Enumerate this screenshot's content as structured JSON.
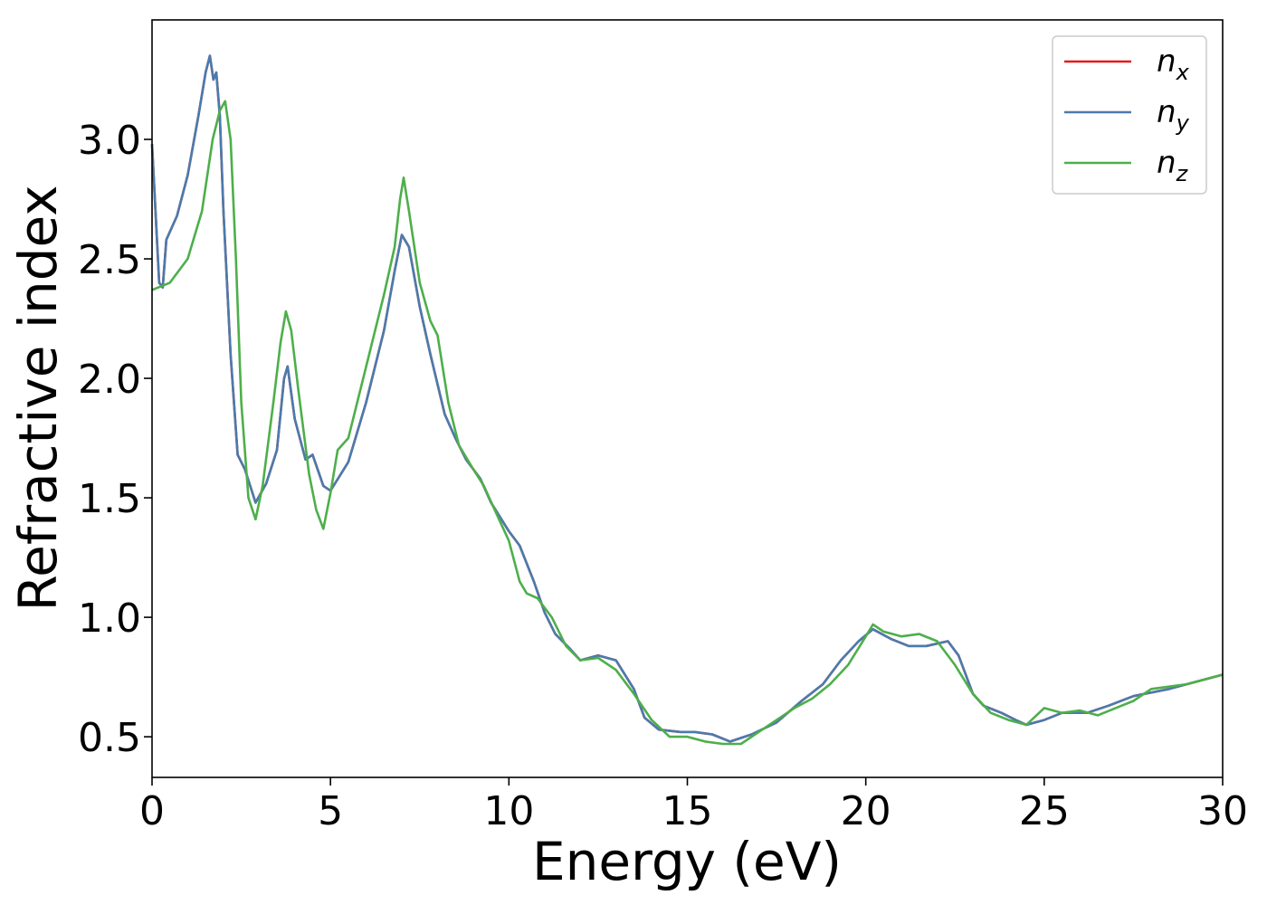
{
  "chart_data": {
    "type": "line",
    "title": "",
    "xlabel": "Energy (eV)",
    "ylabel": "Refractive index",
    "xlim": [
      0,
      30
    ],
    "ylim": [
      0.33,
      3.5
    ],
    "xticks": [
      0,
      5,
      10,
      15,
      20,
      25,
      30
    ],
    "xtick_labels": [
      "0",
      "5",
      "10",
      "15",
      "20",
      "25",
      "30"
    ],
    "yticks": [
      0.5,
      1.0,
      1.5,
      2.0,
      2.5,
      3.0
    ],
    "ytick_labels": [
      "0.5",
      "1.0",
      "1.5",
      "2.0",
      "2.5",
      "3.0"
    ],
    "grid": false,
    "legend_position": "top-right",
    "series": [
      {
        "name": "n_x",
        "legend_main": "n",
        "legend_sub": "x",
        "color": "#e41a1c",
        "x": [
          0,
          0.2,
          0.3,
          0.4,
          0.7,
          1.0,
          1.3,
          1.5,
          1.62,
          1.72,
          1.8,
          1.9,
          2.0,
          2.2,
          2.4,
          2.6,
          2.9,
          3.2,
          3.5,
          3.7,
          3.8,
          4.0,
          4.3,
          4.5,
          4.8,
          5.0,
          5.5,
          6.0,
          6.5,
          6.8,
          7.0,
          7.2,
          7.5,
          7.8,
          8.2,
          8.5,
          8.8,
          9.0,
          9.2,
          9.5,
          10.0,
          10.3,
          10.7,
          11.0,
          11.3,
          11.7,
          12.0,
          12.5,
          13.0,
          13.5,
          13.8,
          14.2,
          14.8,
          15.2,
          15.7,
          16.2,
          16.8,
          17.5,
          18.2,
          18.8,
          19.3,
          19.8,
          20.2,
          20.7,
          21.2,
          21.7,
          22.3,
          22.6,
          23.0,
          23.3,
          23.8,
          24.2,
          24.5,
          25.0,
          25.5,
          26.2,
          26.8,
          27.5,
          28.5,
          29.5,
          30
        ],
        "y": [
          2.98,
          2.4,
          2.38,
          2.58,
          2.68,
          2.85,
          3.1,
          3.28,
          3.35,
          3.25,
          3.28,
          3.1,
          2.7,
          2.1,
          1.68,
          1.62,
          1.48,
          1.56,
          1.7,
          2.0,
          2.05,
          1.83,
          1.66,
          1.68,
          1.55,
          1.53,
          1.65,
          1.9,
          2.2,
          2.45,
          2.6,
          2.55,
          2.3,
          2.1,
          1.85,
          1.75,
          1.66,
          1.62,
          1.58,
          1.48,
          1.36,
          1.3,
          1.15,
          1.02,
          0.93,
          0.87,
          0.82,
          0.84,
          0.82,
          0.7,
          0.58,
          0.53,
          0.52,
          0.52,
          0.51,
          0.48,
          0.51,
          0.56,
          0.65,
          0.72,
          0.82,
          0.9,
          0.95,
          0.91,
          0.88,
          0.88,
          0.9,
          0.84,
          0.68,
          0.63,
          0.6,
          0.57,
          0.55,
          0.57,
          0.6,
          0.6,
          0.63,
          0.67,
          0.7,
          0.74,
          0.76
        ]
      },
      {
        "name": "n_y",
        "legend_main": "n",
        "legend_sub": "y",
        "color": "#4a7bad",
        "x": [
          0,
          0.2,
          0.3,
          0.4,
          0.7,
          1.0,
          1.3,
          1.5,
          1.62,
          1.72,
          1.8,
          1.9,
          2.0,
          2.2,
          2.4,
          2.6,
          2.9,
          3.2,
          3.5,
          3.7,
          3.8,
          4.0,
          4.3,
          4.5,
          4.8,
          5.0,
          5.5,
          6.0,
          6.5,
          6.8,
          7.0,
          7.2,
          7.5,
          7.8,
          8.2,
          8.5,
          8.8,
          9.0,
          9.2,
          9.5,
          10.0,
          10.3,
          10.7,
          11.0,
          11.3,
          11.7,
          12.0,
          12.5,
          13.0,
          13.5,
          13.8,
          14.2,
          14.8,
          15.2,
          15.7,
          16.2,
          16.8,
          17.5,
          18.2,
          18.8,
          19.3,
          19.8,
          20.2,
          20.7,
          21.2,
          21.7,
          22.3,
          22.6,
          23.0,
          23.3,
          23.8,
          24.2,
          24.5,
          25.0,
          25.5,
          26.2,
          26.8,
          27.5,
          28.5,
          29.5,
          30
        ],
        "y": [
          2.98,
          2.4,
          2.38,
          2.58,
          2.68,
          2.85,
          3.1,
          3.28,
          3.35,
          3.25,
          3.28,
          3.1,
          2.7,
          2.1,
          1.68,
          1.62,
          1.48,
          1.56,
          1.7,
          2.0,
          2.05,
          1.83,
          1.66,
          1.68,
          1.55,
          1.53,
          1.65,
          1.9,
          2.2,
          2.45,
          2.6,
          2.55,
          2.3,
          2.1,
          1.85,
          1.75,
          1.66,
          1.62,
          1.58,
          1.48,
          1.36,
          1.3,
          1.15,
          1.02,
          0.93,
          0.87,
          0.82,
          0.84,
          0.82,
          0.7,
          0.58,
          0.53,
          0.52,
          0.52,
          0.51,
          0.48,
          0.51,
          0.56,
          0.65,
          0.72,
          0.82,
          0.9,
          0.95,
          0.91,
          0.88,
          0.88,
          0.9,
          0.84,
          0.68,
          0.63,
          0.6,
          0.57,
          0.55,
          0.57,
          0.6,
          0.6,
          0.63,
          0.67,
          0.7,
          0.74,
          0.76
        ]
      },
      {
        "name": "n_z",
        "legend_main": "n",
        "legend_sub": "z",
        "color": "#4daf4a",
        "x": [
          0,
          0.5,
          1.0,
          1.4,
          1.7,
          1.9,
          2.05,
          2.2,
          2.35,
          2.5,
          2.7,
          2.9,
          3.1,
          3.4,
          3.6,
          3.75,
          3.9,
          4.1,
          4.4,
          4.6,
          4.8,
          5.0,
          5.2,
          5.5,
          6.0,
          6.5,
          6.8,
          6.95,
          7.05,
          7.2,
          7.5,
          7.8,
          8.0,
          8.3,
          8.6,
          9.0,
          9.3,
          9.6,
          10.0,
          10.3,
          10.5,
          10.8,
          11.2,
          11.6,
          12.0,
          12.5,
          13.0,
          13.5,
          14.0,
          14.5,
          15.0,
          15.5,
          16.0,
          16.5,
          17.0,
          17.5,
          18.0,
          18.5,
          19.0,
          19.5,
          20.0,
          20.2,
          20.5,
          21.0,
          21.5,
          22.0,
          22.5,
          23.0,
          23.5,
          24.0,
          24.5,
          25.0,
          25.5,
          26.0,
          26.5,
          27.0,
          27.5,
          28.0,
          29.0,
          30
        ],
        "y": [
          2.37,
          2.4,
          2.5,
          2.7,
          3.0,
          3.12,
          3.16,
          3.0,
          2.5,
          1.9,
          1.5,
          1.41,
          1.55,
          1.9,
          2.15,
          2.28,
          2.2,
          1.95,
          1.6,
          1.45,
          1.37,
          1.52,
          1.7,
          1.75,
          2.05,
          2.35,
          2.55,
          2.75,
          2.84,
          2.7,
          2.4,
          2.24,
          2.18,
          1.9,
          1.72,
          1.62,
          1.55,
          1.45,
          1.32,
          1.15,
          1.1,
          1.08,
          1.0,
          0.88,
          0.82,
          0.83,
          0.78,
          0.68,
          0.57,
          0.5,
          0.5,
          0.48,
          0.47,
          0.47,
          0.52,
          0.57,
          0.62,
          0.66,
          0.72,
          0.8,
          0.92,
          0.97,
          0.94,
          0.92,
          0.93,
          0.9,
          0.8,
          0.68,
          0.6,
          0.57,
          0.55,
          0.62,
          0.6,
          0.61,
          0.59,
          0.62,
          0.65,
          0.7,
          0.72,
          0.76
        ]
      }
    ]
  }
}
